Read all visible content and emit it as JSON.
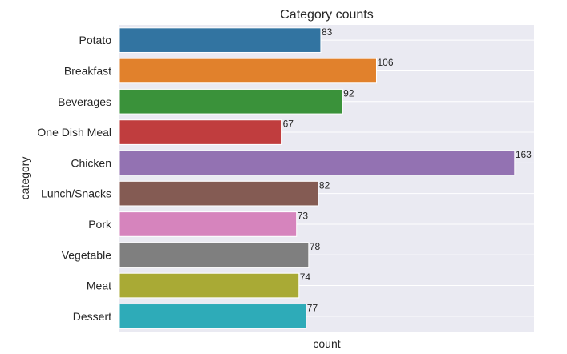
{
  "chart_data": {
    "type": "bar",
    "orientation": "horizontal",
    "title": "Category counts",
    "xlabel": "count",
    "ylabel": "category",
    "categories": [
      "Potato",
      "Breakfast",
      "Beverages",
      "One Dish Meal",
      "Chicken",
      "Lunch/Snacks",
      "Pork",
      "Vegetable",
      "Meat",
      "Dessert"
    ],
    "values": [
      83,
      106,
      92,
      67,
      163,
      82,
      73,
      78,
      74,
      77
    ],
    "data_labels": [
      "83",
      "106",
      "92",
      "67",
      "163",
      "82",
      "73",
      "78",
      "74",
      "77"
    ],
    "colors": [
      "#3274a1",
      "#e1812c",
      "#3a923a",
      "#c03d3e",
      "#9372b2",
      "#845b53",
      "#d684bd",
      "#7f7f7f",
      "#a9aa35",
      "#2eabb8"
    ],
    "xlim": [
      0,
      171
    ],
    "x_tick_labels_shown": false,
    "grid": true,
    "legend": "none",
    "plot_background": "#eaeaf2",
    "grid_color": "#ffffff"
  }
}
